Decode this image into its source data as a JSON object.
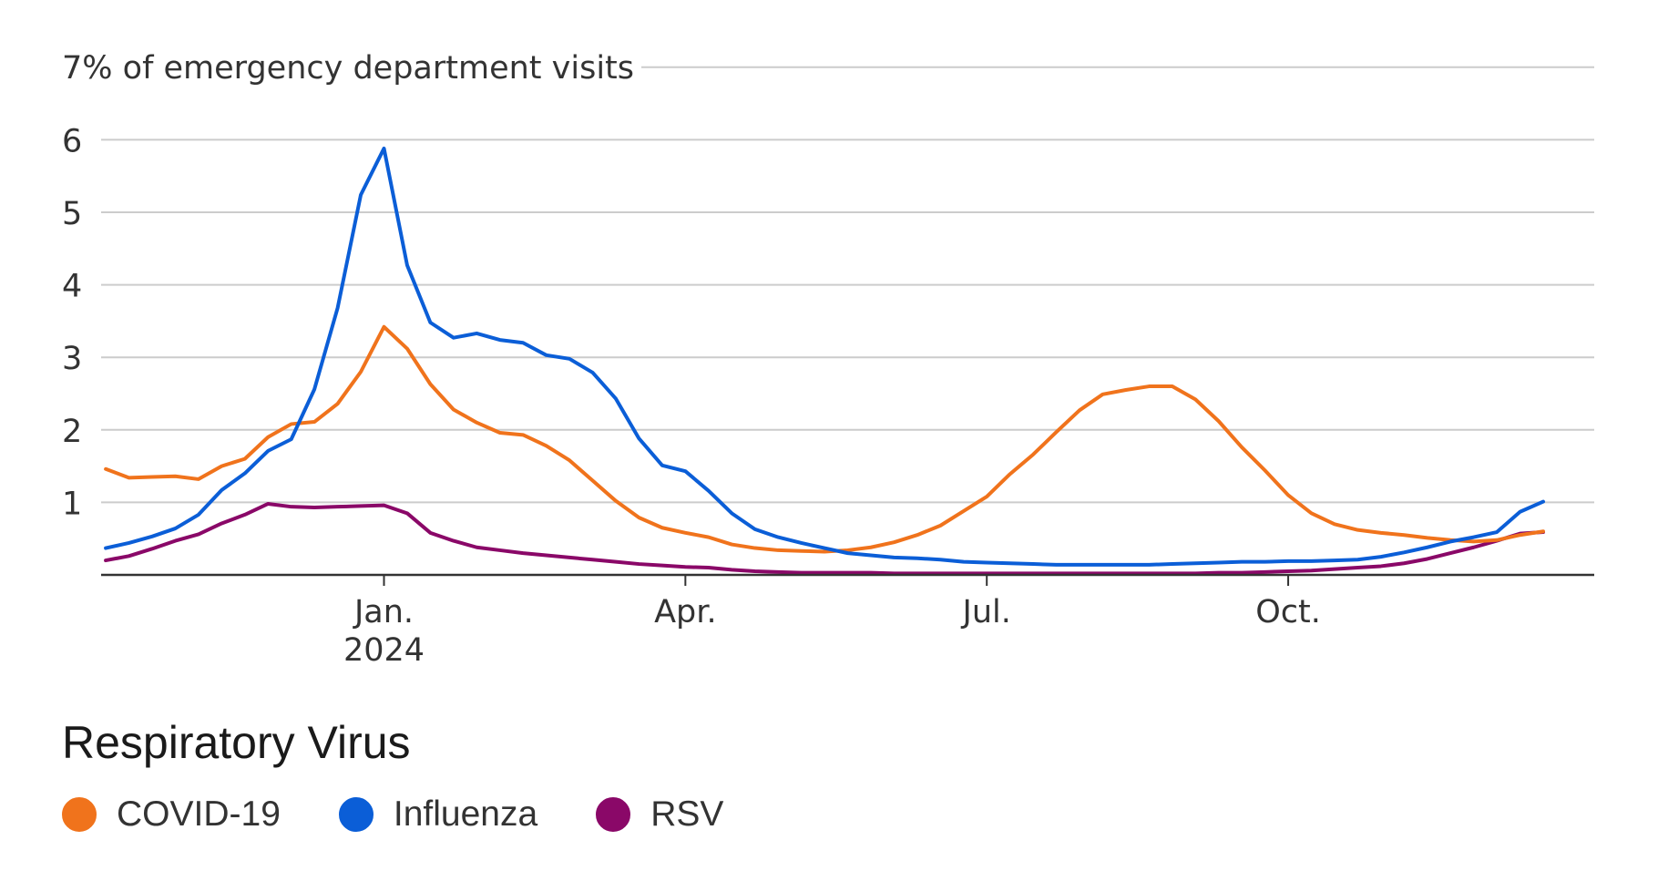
{
  "chart_data": {
    "type": "line",
    "y_title": "7% of emergency department visits",
    "y_ticks": [
      1,
      2,
      3,
      4,
      5,
      6
    ],
    "ylim": [
      0,
      7
    ],
    "x_ticks": [
      {
        "week": 14,
        "label": "Jan.",
        "sublabel": "2024"
      },
      {
        "week": 27,
        "label": "Apr.",
        "sublabel": ""
      },
      {
        "week": 40,
        "label": "Jul.",
        "sublabel": ""
      },
      {
        "week": 53,
        "label": "Oct.",
        "sublabel": ""
      }
    ],
    "xlim": [
      1.8,
      66.2
    ],
    "grid": true,
    "legend_title": "Respiratory Virus",
    "series": [
      {
        "name": "COVID-19",
        "color": "#F0731C",
        "values": [
          1.46,
          1.34,
          1.35,
          1.36,
          1.32,
          1.5,
          1.6,
          1.9,
          2.08,
          2.11,
          2.36,
          2.8,
          3.42,
          3.12,
          2.63,
          2.28,
          2.1,
          1.96,
          1.93,
          1.78,
          1.58,
          1.3,
          1.02,
          0.79,
          0.65,
          0.58,
          0.52,
          0.42,
          0.37,
          0.34,
          0.33,
          0.32,
          0.34,
          0.38,
          0.45,
          0.55,
          0.68,
          0.88,
          1.08,
          1.39,
          1.66,
          1.97,
          2.27,
          2.49,
          2.55,
          2.6,
          2.6,
          2.42,
          2.12,
          1.76,
          1.44,
          1.1,
          0.85,
          0.7,
          0.62,
          0.58,
          0.55,
          0.51,
          0.48,
          0.46,
          0.48,
          0.55,
          0.6
        ]
      },
      {
        "name": "Influenza",
        "color": "#0B5ED7",
        "values": [
          0.37,
          0.44,
          0.53,
          0.64,
          0.83,
          1.17,
          1.4,
          1.71,
          1.87,
          2.56,
          3.68,
          5.24,
          5.88,
          4.27,
          3.48,
          3.27,
          3.33,
          3.24,
          3.2,
          3.03,
          2.98,
          2.79,
          2.43,
          1.88,
          1.51,
          1.43,
          1.16,
          0.85,
          0.63,
          0.52,
          0.44,
          0.37,
          0.3,
          0.27,
          0.24,
          0.23,
          0.21,
          0.18,
          0.17,
          0.16,
          0.15,
          0.14,
          0.14,
          0.14,
          0.14,
          0.14,
          0.15,
          0.16,
          0.17,
          0.18,
          0.18,
          0.19,
          0.19,
          0.2,
          0.21,
          0.25,
          0.31,
          0.38,
          0.46,
          0.52,
          0.59,
          0.87,
          1.01
        ]
      },
      {
        "name": "RSV",
        "color": "#8A0868",
        "values": [
          0.2,
          0.26,
          0.36,
          0.47,
          0.56,
          0.71,
          0.83,
          0.98,
          0.94,
          0.93,
          0.94,
          0.95,
          0.96,
          0.85,
          0.58,
          0.47,
          0.38,
          0.34,
          0.3,
          0.27,
          0.24,
          0.21,
          0.18,
          0.15,
          0.13,
          0.11,
          0.1,
          0.07,
          0.05,
          0.04,
          0.03,
          0.03,
          0.03,
          0.03,
          0.02,
          0.02,
          0.02,
          0.02,
          0.02,
          0.02,
          0.02,
          0.02,
          0.02,
          0.02,
          0.02,
          0.02,
          0.02,
          0.02,
          0.03,
          0.03,
          0.04,
          0.05,
          0.06,
          0.08,
          0.1,
          0.12,
          0.16,
          0.22,
          0.3,
          0.38,
          0.47,
          0.57,
          0.59
        ]
      }
    ]
  }
}
